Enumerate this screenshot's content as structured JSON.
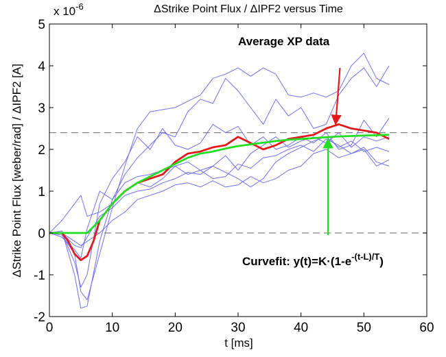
{
  "chart_data": {
    "type": "line",
    "title": "ΔStrike Point Flux / ΔIPF2 versus Time",
    "xlabel": "t [ms]",
    "ylabel": "ΔStrike Point Flux [weber/rad] / ΔIPF2 [A]",
    "y_multiplier_label": "x 10",
    "y_multiplier_exponent": "-6",
    "xlim": [
      0,
      60
    ],
    "ylim": [
      -2,
      5
    ],
    "x_ticks": [
      "0",
      "10",
      "20",
      "30",
      "40",
      "50",
      "60"
    ],
    "y_ticks": [
      "-2",
      "-1",
      "0",
      "1",
      "2",
      "3",
      "4",
      "5"
    ],
    "grid": false,
    "reference_lines": [
      {
        "y": 2.4,
        "style": "dashed"
      },
      {
        "y": 0,
        "style": "dashed"
      }
    ],
    "annotations": {
      "average": "Average XP data",
      "curvefit_prefix": "Curvefit: y(t)=K·(1-e",
      "curvefit_exponent": "-(t-L)/T",
      "curvefit_suffix": ")"
    },
    "colors": {
      "shots": "#6f6ff0",
      "average": "#e31a1c",
      "fit": "#22dd22",
      "reference": "#808080"
    },
    "series": [
      {
        "values": [
          [
            0,
            0
          ],
          [
            2,
            -0.05
          ],
          [
            4,
            -0.5
          ],
          [
            5,
            -1.4
          ],
          [
            6,
            -1.6
          ],
          [
            8,
            -0.5
          ],
          [
            10,
            0.6
          ],
          [
            12,
            1.6
          ],
          [
            14,
            2.5
          ],
          [
            16,
            2.9
          ],
          [
            18,
            2.95
          ],
          [
            20,
            3.0
          ],
          [
            22,
            3.15
          ],
          [
            24,
            3.3
          ],
          [
            26,
            3.7
          ],
          [
            28,
            3.8
          ],
          [
            30,
            3.95
          ],
          [
            32,
            3.75
          ],
          [
            34,
            3.95
          ],
          [
            36,
            3.8
          ],
          [
            38,
            3.3
          ],
          [
            40,
            3.25
          ],
          [
            42,
            3.35
          ],
          [
            44,
            3.25
          ],
          [
            46,
            3.4
          ],
          [
            48,
            4.0
          ],
          [
            50,
            4.3
          ],
          [
            52,
            3.7
          ],
          [
            54,
            3.55
          ]
        ]
      },
      {
        "values": [
          [
            0,
            0
          ],
          [
            2,
            0.05
          ],
          [
            4,
            -1.0
          ],
          [
            5,
            -1.8
          ],
          [
            6,
            -1.75
          ],
          [
            8,
            -0.2
          ],
          [
            10,
            0.8
          ],
          [
            12,
            1.4
          ],
          [
            14,
            1.8
          ],
          [
            16,
            2.1
          ],
          [
            18,
            2.4
          ],
          [
            20,
            2.3
          ],
          [
            22,
            2.9
          ],
          [
            24,
            3.2
          ],
          [
            26,
            3.1
          ],
          [
            28,
            3.7
          ],
          [
            30,
            3.4
          ],
          [
            32,
            3.0
          ],
          [
            34,
            2.6
          ],
          [
            36,
            3.2
          ],
          [
            38,
            2.8
          ],
          [
            40,
            3.0
          ],
          [
            42,
            2.5
          ],
          [
            44,
            2.6
          ],
          [
            46,
            3.3
          ],
          [
            48,
            3.7
          ],
          [
            50,
            3.95
          ],
          [
            52,
            3.5
          ],
          [
            54,
            4.0
          ]
        ]
      },
      {
        "values": [
          [
            0,
            0
          ],
          [
            2,
            0
          ],
          [
            4,
            -0.7
          ],
          [
            5,
            -1.3
          ],
          [
            6,
            -1.0
          ],
          [
            8,
            0.7
          ],
          [
            10,
            1.3
          ],
          [
            12,
            1.7
          ],
          [
            14,
            2.3
          ],
          [
            16,
            2.0
          ],
          [
            18,
            2.5
          ],
          [
            20,
            2.1
          ],
          [
            22,
            2.0
          ],
          [
            24,
            2.15
          ],
          [
            26,
            2.6
          ],
          [
            28,
            2.4
          ],
          [
            30,
            2.55
          ],
          [
            32,
            2.1
          ],
          [
            34,
            2.3
          ],
          [
            36,
            2.0
          ],
          [
            38,
            2.1
          ],
          [
            40,
            2.3
          ],
          [
            42,
            2.15
          ],
          [
            44,
            2.4
          ],
          [
            46,
            2.0
          ],
          [
            48,
            2.1
          ],
          [
            50,
            2.7
          ],
          [
            52,
            2.3
          ],
          [
            54,
            2.75
          ]
        ]
      },
      {
        "values": [
          [
            0,
            0
          ],
          [
            2,
            -0.1
          ],
          [
            4,
            -0.4
          ],
          [
            5,
            -0.6
          ],
          [
            6,
            0.1
          ],
          [
            8,
            1.0
          ],
          [
            10,
            0.8
          ],
          [
            12,
            1.2
          ],
          [
            14,
            1.35
          ],
          [
            16,
            1.4
          ],
          [
            18,
            1.5
          ],
          [
            20,
            1.6
          ],
          [
            22,
            1.7
          ],
          [
            24,
            1.5
          ],
          [
            26,
            1.6
          ],
          [
            28,
            1.85
          ],
          [
            30,
            1.5
          ],
          [
            32,
            1.9
          ],
          [
            34,
            2.1
          ],
          [
            36,
            2.3
          ],
          [
            38,
            2.05
          ],
          [
            40,
            2.2
          ],
          [
            42,
            2.3
          ],
          [
            44,
            2.15
          ],
          [
            46,
            2.4
          ],
          [
            48,
            2.05
          ],
          [
            50,
            2.3
          ],
          [
            52,
            2.2
          ],
          [
            54,
            2.3
          ]
        ]
      },
      {
        "values": [
          [
            0,
            0
          ],
          [
            2,
            0.3
          ],
          [
            4,
            0.7
          ],
          [
            5,
            0.9
          ],
          [
            6,
            0.4
          ],
          [
            8,
            0.5
          ],
          [
            10,
            0.7
          ],
          [
            12,
            1.0
          ],
          [
            14,
            1.2
          ],
          [
            16,
            1.1
          ],
          [
            18,
            1.3
          ],
          [
            20,
            1.6
          ],
          [
            22,
            1.4
          ],
          [
            24,
            1.5
          ],
          [
            26,
            1.3
          ],
          [
            28,
            1.35
          ],
          [
            30,
            1.65
          ],
          [
            32,
            1.55
          ],
          [
            34,
            1.8
          ],
          [
            36,
            1.85
          ],
          [
            38,
            2.0
          ],
          [
            40,
            2.1
          ],
          [
            42,
            1.95
          ],
          [
            44,
            2.25
          ],
          [
            46,
            2.1
          ],
          [
            48,
            1.9
          ],
          [
            50,
            2.0
          ],
          [
            52,
            1.6
          ],
          [
            54,
            1.75
          ]
        ]
      },
      {
        "values": [
          [
            0,
            0
          ],
          [
            2,
            0
          ],
          [
            4,
            -0.2
          ],
          [
            5,
            -0.3
          ],
          [
            6,
            -0.2
          ],
          [
            8,
            0.0
          ],
          [
            10,
            0.3
          ],
          [
            12,
            0.5
          ],
          [
            14,
            0.8
          ],
          [
            16,
            0.9
          ],
          [
            18,
            1.0
          ],
          [
            20,
            1.15
          ],
          [
            22,
            1.2
          ],
          [
            24,
            1.1
          ],
          [
            26,
            1.25
          ],
          [
            28,
            1.1
          ],
          [
            30,
            1.15
          ],
          [
            32,
            1.35
          ],
          [
            34,
            1.2
          ],
          [
            36,
            1.3
          ],
          [
            38,
            1.5
          ],
          [
            40,
            1.6
          ],
          [
            42,
            1.9
          ],
          [
            44,
            2.0
          ],
          [
            46,
            1.8
          ],
          [
            48,
            1.9
          ],
          [
            50,
            2.05
          ],
          [
            52,
            1.7
          ],
          [
            54,
            1.6
          ]
        ]
      },
      {
        "values": [
          [
            0,
            0
          ],
          [
            2,
            0
          ],
          [
            4,
            -0.3
          ],
          [
            5,
            -0.35
          ],
          [
            6,
            -0.1
          ],
          [
            8,
            0.4
          ],
          [
            10,
            0.6
          ],
          [
            12,
            0.9
          ],
          [
            14,
            1.0
          ],
          [
            16,
            1.05
          ],
          [
            18,
            1.2
          ],
          [
            20,
            1.3
          ],
          [
            22,
            1.45
          ],
          [
            24,
            1.4
          ],
          [
            26,
            1.6
          ],
          [
            28,
            1.45
          ],
          [
            30,
            1.3
          ],
          [
            32,
            1.1
          ],
          [
            34,
            1.3
          ],
          [
            36,
            1.7
          ],
          [
            38,
            1.9
          ],
          [
            40,
            2.05
          ],
          [
            42,
            2.2
          ],
          [
            44,
            2.3
          ],
          [
            46,
            2.05
          ],
          [
            48,
            2.2
          ],
          [
            50,
            1.95
          ],
          [
            52,
            2.05
          ],
          [
            54,
            1.95
          ]
        ]
      },
      {
        "values": [
          [
            0,
            0
          ],
          [
            2,
            0
          ],
          [
            3,
            -0.2
          ],
          [
            4,
            -0.5
          ],
          [
            5,
            -0.65
          ],
          [
            6,
            -0.55
          ],
          [
            7,
            -0.2
          ],
          [
            8,
            0.3
          ],
          [
            10,
            0.7
          ],
          [
            12,
            1.0
          ],
          [
            14,
            1.2
          ],
          [
            16,
            1.3
          ],
          [
            18,
            1.4
          ],
          [
            20,
            1.7
          ],
          [
            22,
            1.9
          ],
          [
            24,
            1.95
          ],
          [
            26,
            2.05
          ],
          [
            28,
            2.1
          ],
          [
            30,
            2.3
          ],
          [
            32,
            2.15
          ],
          [
            34,
            2.0
          ],
          [
            36,
            2.1
          ],
          [
            38,
            2.25
          ],
          [
            40,
            2.3
          ],
          [
            42,
            2.35
          ],
          [
            44,
            2.5
          ],
          [
            46,
            2.6
          ],
          [
            48,
            2.5
          ],
          [
            50,
            2.45
          ],
          [
            52,
            2.4
          ],
          [
            54,
            2.25
          ]
        ]
      },
      {
        "values": [
          [
            0,
            0
          ],
          [
            6,
            0
          ],
          [
            8,
            0.3
          ],
          [
            10,
            0.7
          ],
          [
            12,
            1.0
          ],
          [
            14,
            1.2
          ],
          [
            16,
            1.35
          ],
          [
            18,
            1.5
          ],
          [
            20,
            1.65
          ],
          [
            22,
            1.8
          ],
          [
            24,
            1.9
          ],
          [
            26,
            1.95
          ],
          [
            28,
            2.02
          ],
          [
            30,
            2.08
          ],
          [
            32,
            2.12
          ],
          [
            34,
            2.16
          ],
          [
            36,
            2.2
          ],
          [
            38,
            2.23
          ],
          [
            40,
            2.25
          ],
          [
            42,
            2.27
          ],
          [
            44,
            2.29
          ],
          [
            46,
            2.31
          ],
          [
            48,
            2.32
          ],
          [
            50,
            2.33
          ],
          [
            52,
            2.34
          ],
          [
            54,
            2.35
          ]
        ]
      }
    ],
    "arrows": [
      {
        "color": "red",
        "from": [
          46.2,
          3.95
        ],
        "to": [
          45.5,
          2.6
        ]
      },
      {
        "color": "green",
        "from": [
          44.3,
          -0.05
        ],
        "to": [
          44.3,
          2.25
        ]
      }
    ]
  }
}
